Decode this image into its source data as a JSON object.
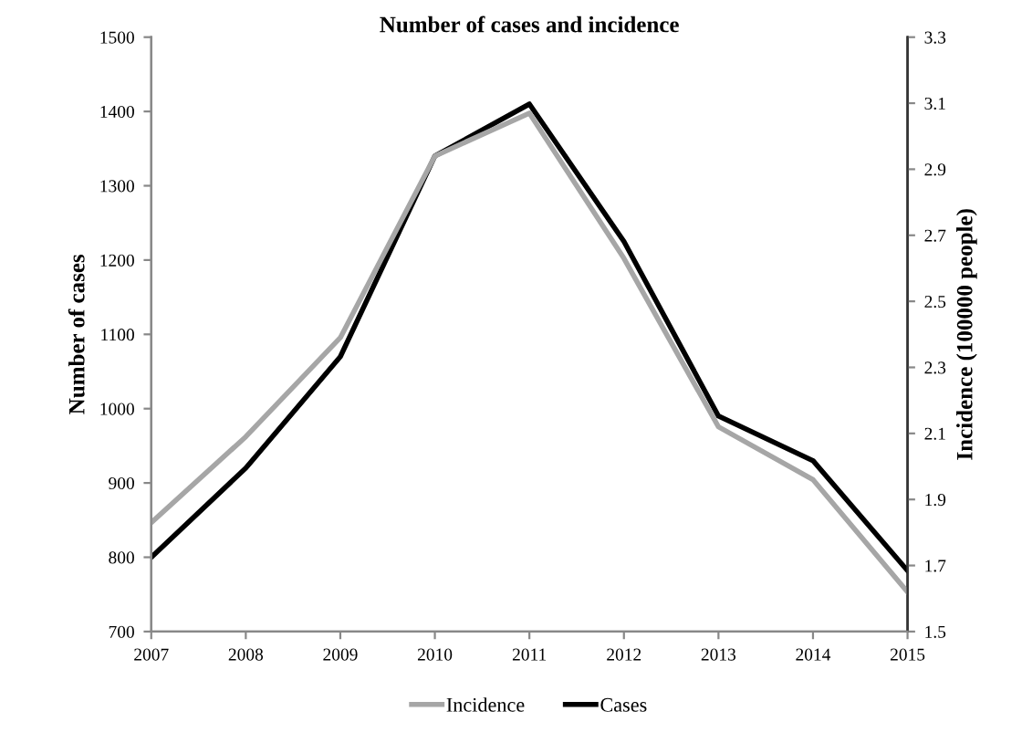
{
  "chart_data": {
    "type": "line",
    "title": "Number of cases and incidence",
    "ylabel": "Number of cases",
    "y2label": "Incidence (100000 people)",
    "x": [
      2007,
      2008,
      2009,
      2010,
      2011,
      2012,
      2013,
      2014,
      2015
    ],
    "xlim": [
      2007,
      2015
    ],
    "xticks": [
      2007,
      2008,
      2009,
      2010,
      2011,
      2012,
      2013,
      2014,
      2015
    ],
    "ylim": [
      700,
      1500
    ],
    "yticks": [
      700,
      800,
      900,
      1000,
      1100,
      1200,
      1300,
      1400,
      1500
    ],
    "y2lim": [
      1.5,
      3.3
    ],
    "y2ticks": [
      1.5,
      1.7,
      1.9,
      2.1,
      2.3,
      2.5,
      2.7,
      2.9,
      3.1,
      3.3
    ],
    "series": [
      {
        "name": "Incidence",
        "color": "#a6a6a6",
        "axis": "y2",
        "values": [
          1.83,
          2.09,
          2.39,
          2.94,
          3.07,
          2.63,
          2.12,
          1.96,
          1.62
        ]
      },
      {
        "name": "Cases",
        "color": "#000000",
        "values": [
          800,
          920,
          1070,
          1340,
          1410,
          1225,
          990,
          930,
          782
        ]
      }
    ],
    "grid": false,
    "legend": "bottom",
    "marker": "none",
    "line_style": "solid"
  }
}
